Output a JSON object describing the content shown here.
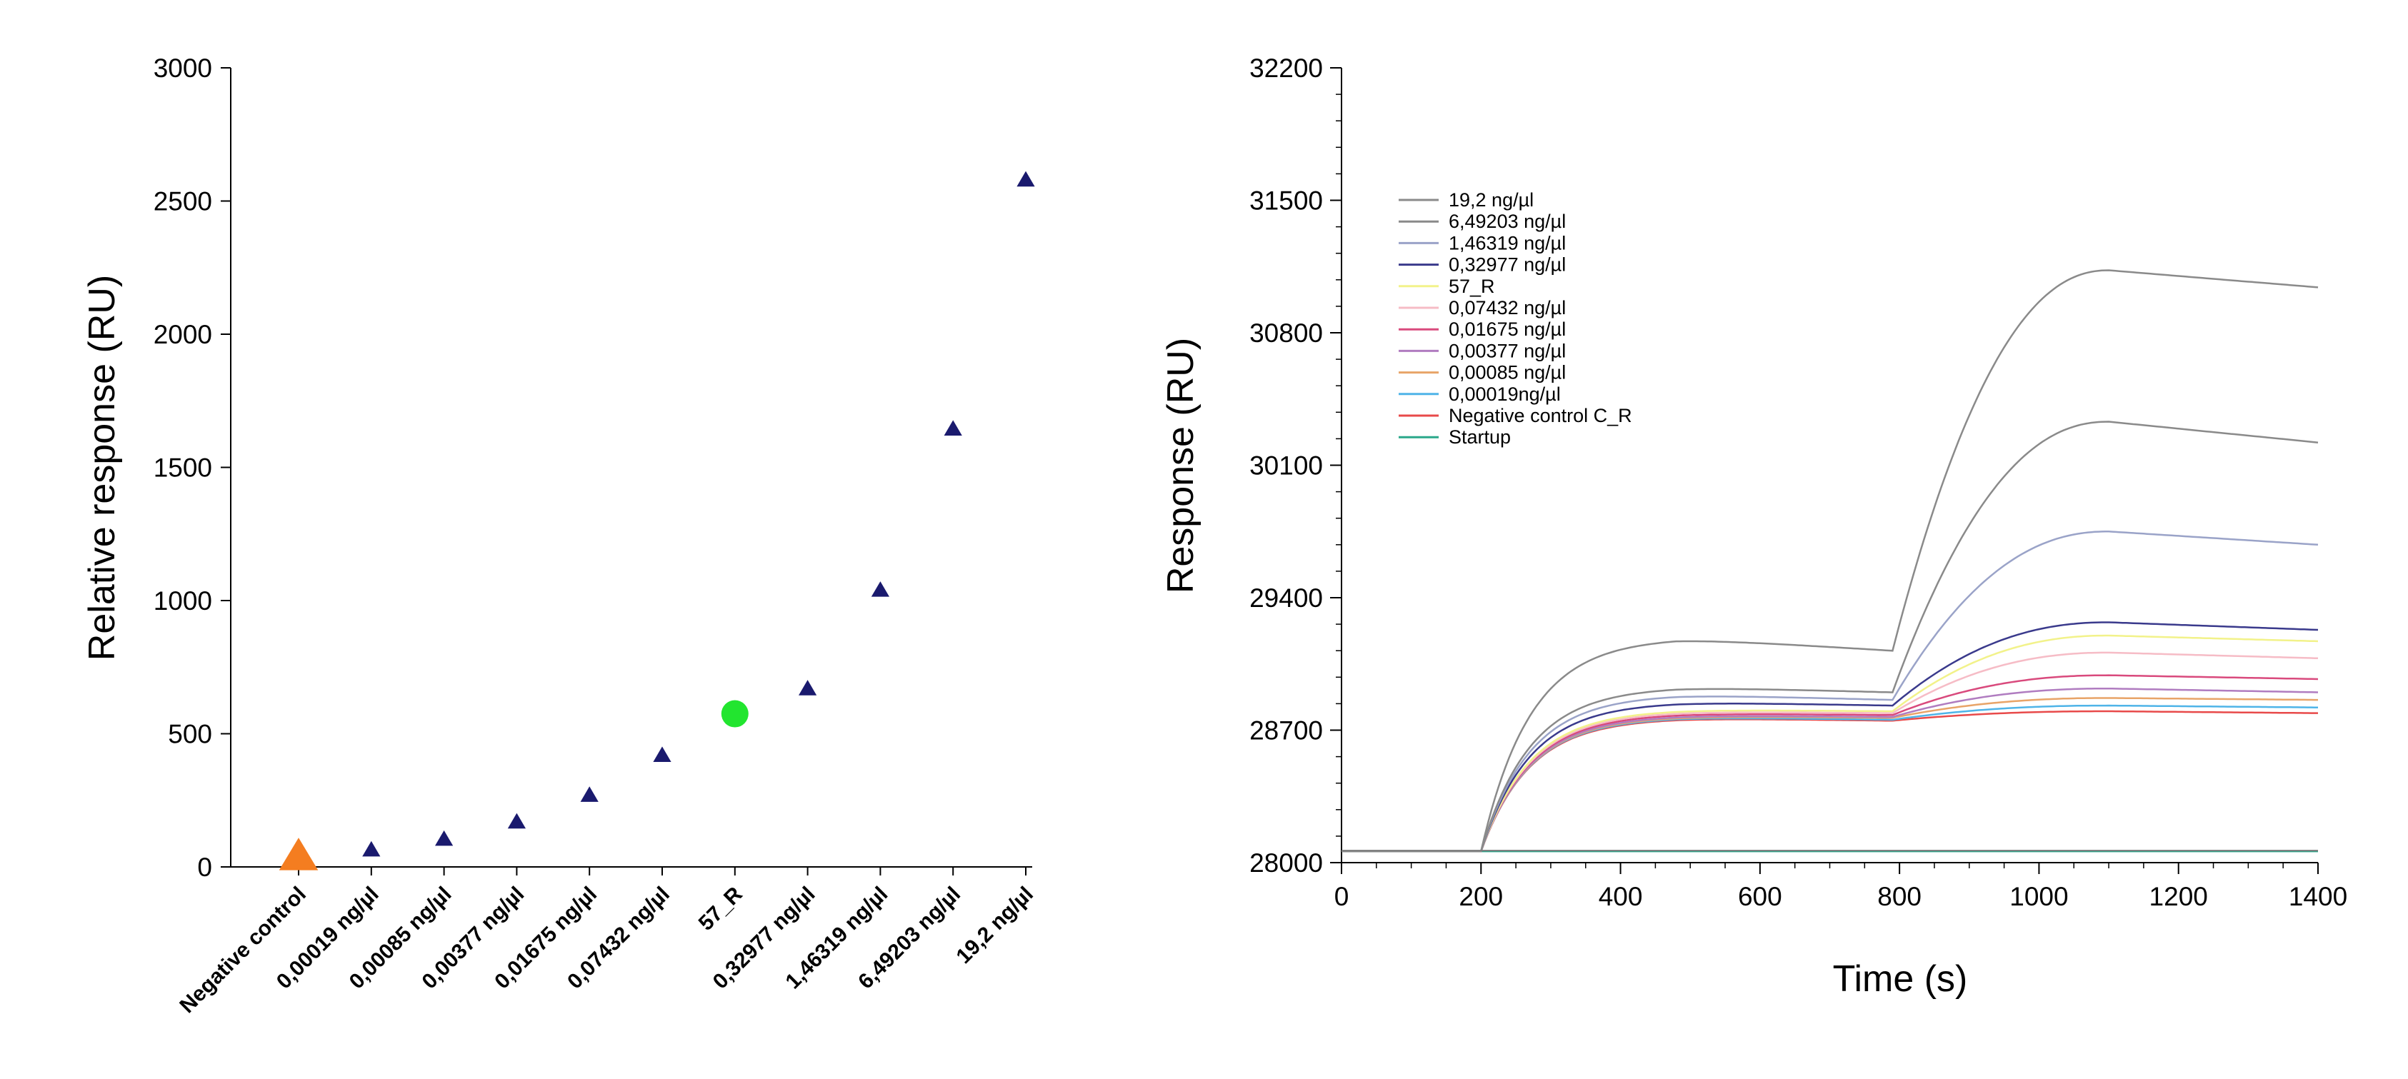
{
  "chart_data": [
    {
      "type": "scatter",
      "title": "",
      "xlabel": "",
      "ylabel": "Relative response (RU)",
      "ylim": [
        0,
        3000
      ],
      "yticks": [
        0,
        500,
        1000,
        1500,
        2000,
        2500,
        3000
      ],
      "categories": [
        "Negative control",
        "0,00019 ng/µl",
        "0,00085 ng/µl",
        "0,00377 ng/µl",
        "0,01675 ng/µl",
        "0,07432 ng/µl",
        "57_R",
        "0,32977 ng/µl",
        "1,46319 ng/µl",
        "6,49203 ng/µl",
        "19,2 ng/µl"
      ],
      "values": [
        40,
        65,
        105,
        170,
        270,
        420,
        575,
        670,
        1040,
        1645,
        2580
      ],
      "markers": [
        "triangle-large",
        "triangle",
        "triangle",
        "triangle",
        "triangle",
        "triangle",
        "circle",
        "triangle",
        "triangle",
        "triangle",
        "triangle"
      ],
      "colors": [
        "#f47d20",
        "#1a1a6e",
        "#1a1a6e",
        "#1a1a6e",
        "#1a1a6e",
        "#1a1a6e",
        "#22e52f",
        "#1a1a6e",
        "#1a1a6e",
        "#1a1a6e",
        "#1a1a6e"
      ]
    },
    {
      "type": "line",
      "title": "",
      "xlabel": "Time (s)",
      "ylabel": "Response (RU)",
      "xlim": [
        0,
        1400
      ],
      "ylim": [
        28000,
        32200
      ],
      "xticks": [
        0,
        200,
        400,
        600,
        800,
        1000,
        1200,
        1400
      ],
      "yticks": [
        28000,
        28700,
        29400,
        30100,
        30800,
        31500,
        32200
      ],
      "legend_position": "top-left",
      "series": [
        {
          "name": "19,2 ng/µl",
          "color": "#8a8a8a",
          "plateau1": 29190,
          "end1": 29120,
          "plateau2": 31130,
          "end": 31040
        },
        {
          "name": "6,49203 ng/µl",
          "color": "#8a8a8a",
          "plateau1": 28930,
          "end1": 28900,
          "plateau2": 30330,
          "end": 30220
        },
        {
          "name": "1,46319 ng/µl",
          "color": "#9aa3c8",
          "plateau1": 28890,
          "end1": 28860,
          "plateau2": 29750,
          "end": 29680
        },
        {
          "name": "0,32977 ng/µl",
          "color": "#3a3a8c",
          "plateau1": 28850,
          "end1": 28830,
          "plateau2": 29270,
          "end": 29230
        },
        {
          "name": "57_R",
          "color": "#f2f28a",
          "plateau1": 28810,
          "end1": 28800,
          "plateau2": 29200,
          "end": 29170
        },
        {
          "name": "0,07432 ng/µl",
          "color": "#f6bcc6",
          "plateau1": 28800,
          "end1": 28790,
          "plateau2": 29110,
          "end": 29080
        },
        {
          "name": "0,01675 ng/µl",
          "color": "#d94a7d",
          "plateau1": 28790,
          "end1": 28780,
          "plateau2": 28990,
          "end": 28970
        },
        {
          "name": "0,00377 ng/µl",
          "color": "#b07cc0",
          "plateau1": 28780,
          "end1": 28770,
          "plateau2": 28920,
          "end": 28900
        },
        {
          "name": "0,00085 ng/µl",
          "color": "#e8a468",
          "plateau1": 28775,
          "end1": 28765,
          "plateau2": 28870,
          "end": 28860
        },
        {
          "name": "0,00019ng/µl",
          "color": "#4fb4e8",
          "plateau1": 28770,
          "end1": 28755,
          "plateau2": 28830,
          "end": 28820
        },
        {
          "name": "Negative control C_R",
          "color": "#e84a4a",
          "plateau1": 28765,
          "end1": 28750,
          "plateau2": 28800,
          "end": 28790
        },
        {
          "name": "Startup",
          "color": "#2aa88a",
          "flat": 28060
        }
      ],
      "baseline": 28060,
      "injection_start": 200,
      "injection_end": 790,
      "dissociation_end": 1400
    }
  ]
}
